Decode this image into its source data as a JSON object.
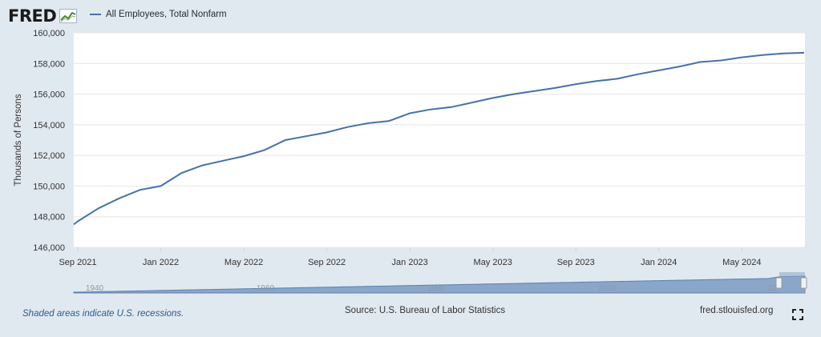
{
  "header": {
    "logo_text": "FRED",
    "legend_label": "All Employees, Total Nonfarm",
    "series_color": "#4572a7"
  },
  "footer": {
    "recession_note": "Shaded areas indicate U.S. recessions.",
    "source": "Source: U.S. Bureau of Labor Statistics",
    "site": "fred.stlouisfed.org"
  },
  "icons": {
    "logo": "fred-chart-logo-icon",
    "fullscreen": "fullscreen-icon"
  },
  "navigator": {
    "labels": [
      "1940",
      "1960",
      "1980",
      "2000",
      "20"
    ]
  },
  "chart_data": {
    "type": "line",
    "title": "",
    "xlabel": "",
    "ylabel": "Thousands of Persons",
    "ylim": [
      146000,
      160000
    ],
    "yticks": [
      146000,
      148000,
      150000,
      152000,
      154000,
      156000,
      158000,
      160000
    ],
    "ytick_labels": [
      "146,000",
      "148,000",
      "150,000",
      "152,000",
      "154,000",
      "156,000",
      "158,000",
      "160,000"
    ],
    "xlim": [
      "2021-09",
      "2024-08"
    ],
    "xticks": [
      "2021-09",
      "2022-01",
      "2022-05",
      "2022-09",
      "2023-01",
      "2023-05",
      "2023-09",
      "2024-01",
      "2024-05"
    ],
    "xtick_labels": [
      "Sep 2021",
      "Jan 2022",
      "May 2022",
      "Sep 2022",
      "Jan 2023",
      "May 2023",
      "Sep 2023",
      "Jan 2024",
      "May 2024"
    ],
    "grid": true,
    "legend_position": "top-left",
    "series": [
      {
        "name": "All Employees, Total Nonfarm",
        "color": "#4572a7",
        "x": [
          "2021-09",
          "2021-10",
          "2021-11",
          "2021-12",
          "2022-01",
          "2022-02",
          "2022-03",
          "2022-04",
          "2022-05",
          "2022-06",
          "2022-07",
          "2022-08",
          "2022-09",
          "2022-10",
          "2022-11",
          "2022-12",
          "2023-01",
          "2023-02",
          "2023-03",
          "2023-04",
          "2023-05",
          "2023-06",
          "2023-07",
          "2023-08",
          "2023-09",
          "2023-10",
          "2023-11",
          "2023-12",
          "2024-01",
          "2024-02",
          "2024-03",
          "2024-04",
          "2024-05",
          "2024-06",
          "2024-07",
          "2024-08"
        ],
        "y": [
          147700,
          148550,
          149200,
          149750,
          150000,
          150850,
          151350,
          151650,
          151950,
          152350,
          153000,
          153250,
          153500,
          153850,
          154100,
          154250,
          154750,
          155000,
          155150,
          155450,
          155750,
          156000,
          156200,
          156400,
          156650,
          156850,
          157000,
          157300,
          157550,
          157800,
          158100,
          158200,
          158400,
          158550,
          158650,
          158700
        ]
      }
    ]
  }
}
